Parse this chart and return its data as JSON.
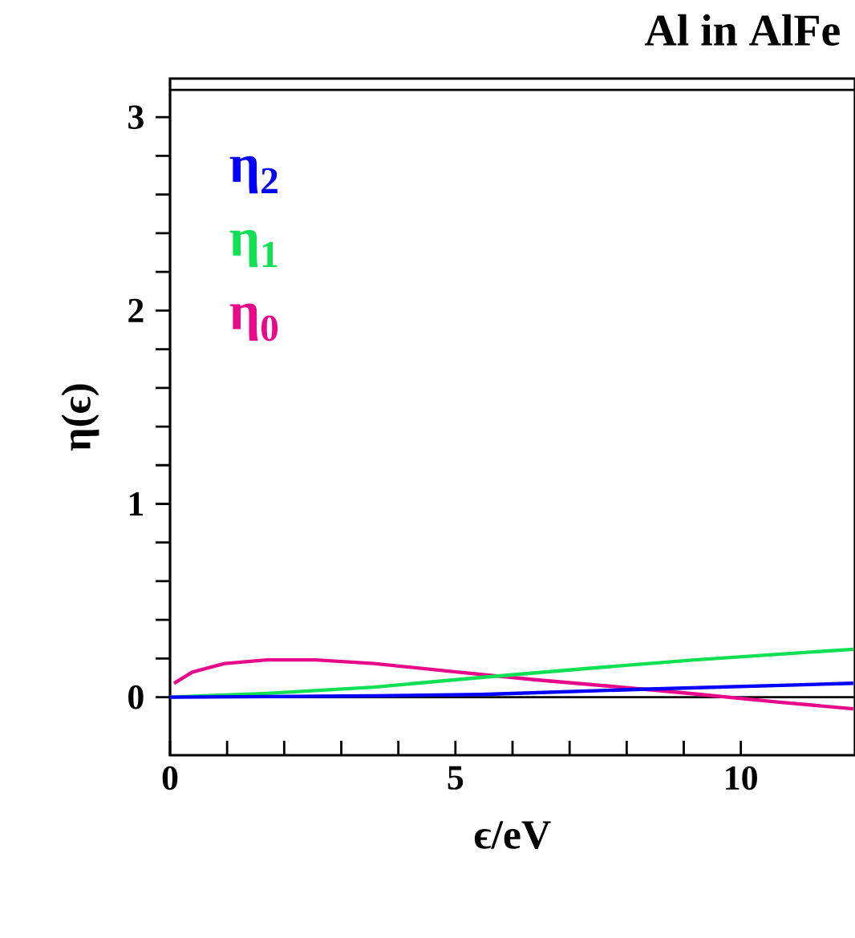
{
  "chart_data": {
    "type": "line",
    "title": "Al in AlFe",
    "xlabel": "ϵ/eV",
    "ylabel": "η(ϵ)",
    "xlim": [
      0,
      12
    ],
    "ylim": [
      -0.3,
      3.2
    ],
    "xticks": [
      0,
      5,
      10
    ],
    "yticks": [
      0,
      1,
      2,
      3
    ],
    "legend": "top left",
    "grid": false,
    "marker": "none",
    "line_style": "solid",
    "ref_lines": [
      {
        "axis": "y",
        "value": 0,
        "color": "#000000"
      },
      {
        "axis": "y",
        "value": 3.1416,
        "color": "#000000"
      }
    ],
    "series": [
      {
        "name": "η$_{2}$",
        "color": "#0000ff",
        "x": [
          0,
          1.7,
          3.57,
          5.45,
          8.26,
          11.97
        ],
        "values": [
          0,
          0.003,
          0.007,
          0.014,
          0.041,
          0.072
        ]
      },
      {
        "name": "η$_{1}$",
        "color": "#11e055",
        "x": [
          0,
          1.7,
          3.57,
          5.45,
          7.32,
          9.19,
          11.97
        ],
        "values": [
          0,
          0.02,
          0.052,
          0.102,
          0.149,
          0.193,
          0.248
        ]
      },
      {
        "name": "η$_{0}$",
        "color": "#e8088a",
        "x": [
          0.07,
          0.39,
          0.96,
          1.7,
          2.55,
          3.57,
          4.98,
          6.38,
          7.79,
          9.19,
          10.6,
          11.97
        ],
        "values": [
          0.072,
          0.13,
          0.174,
          0.193,
          0.193,
          0.174,
          0.132,
          0.091,
          0.055,
          0.017,
          -0.024,
          -0.06
        ]
      }
    ]
  }
}
